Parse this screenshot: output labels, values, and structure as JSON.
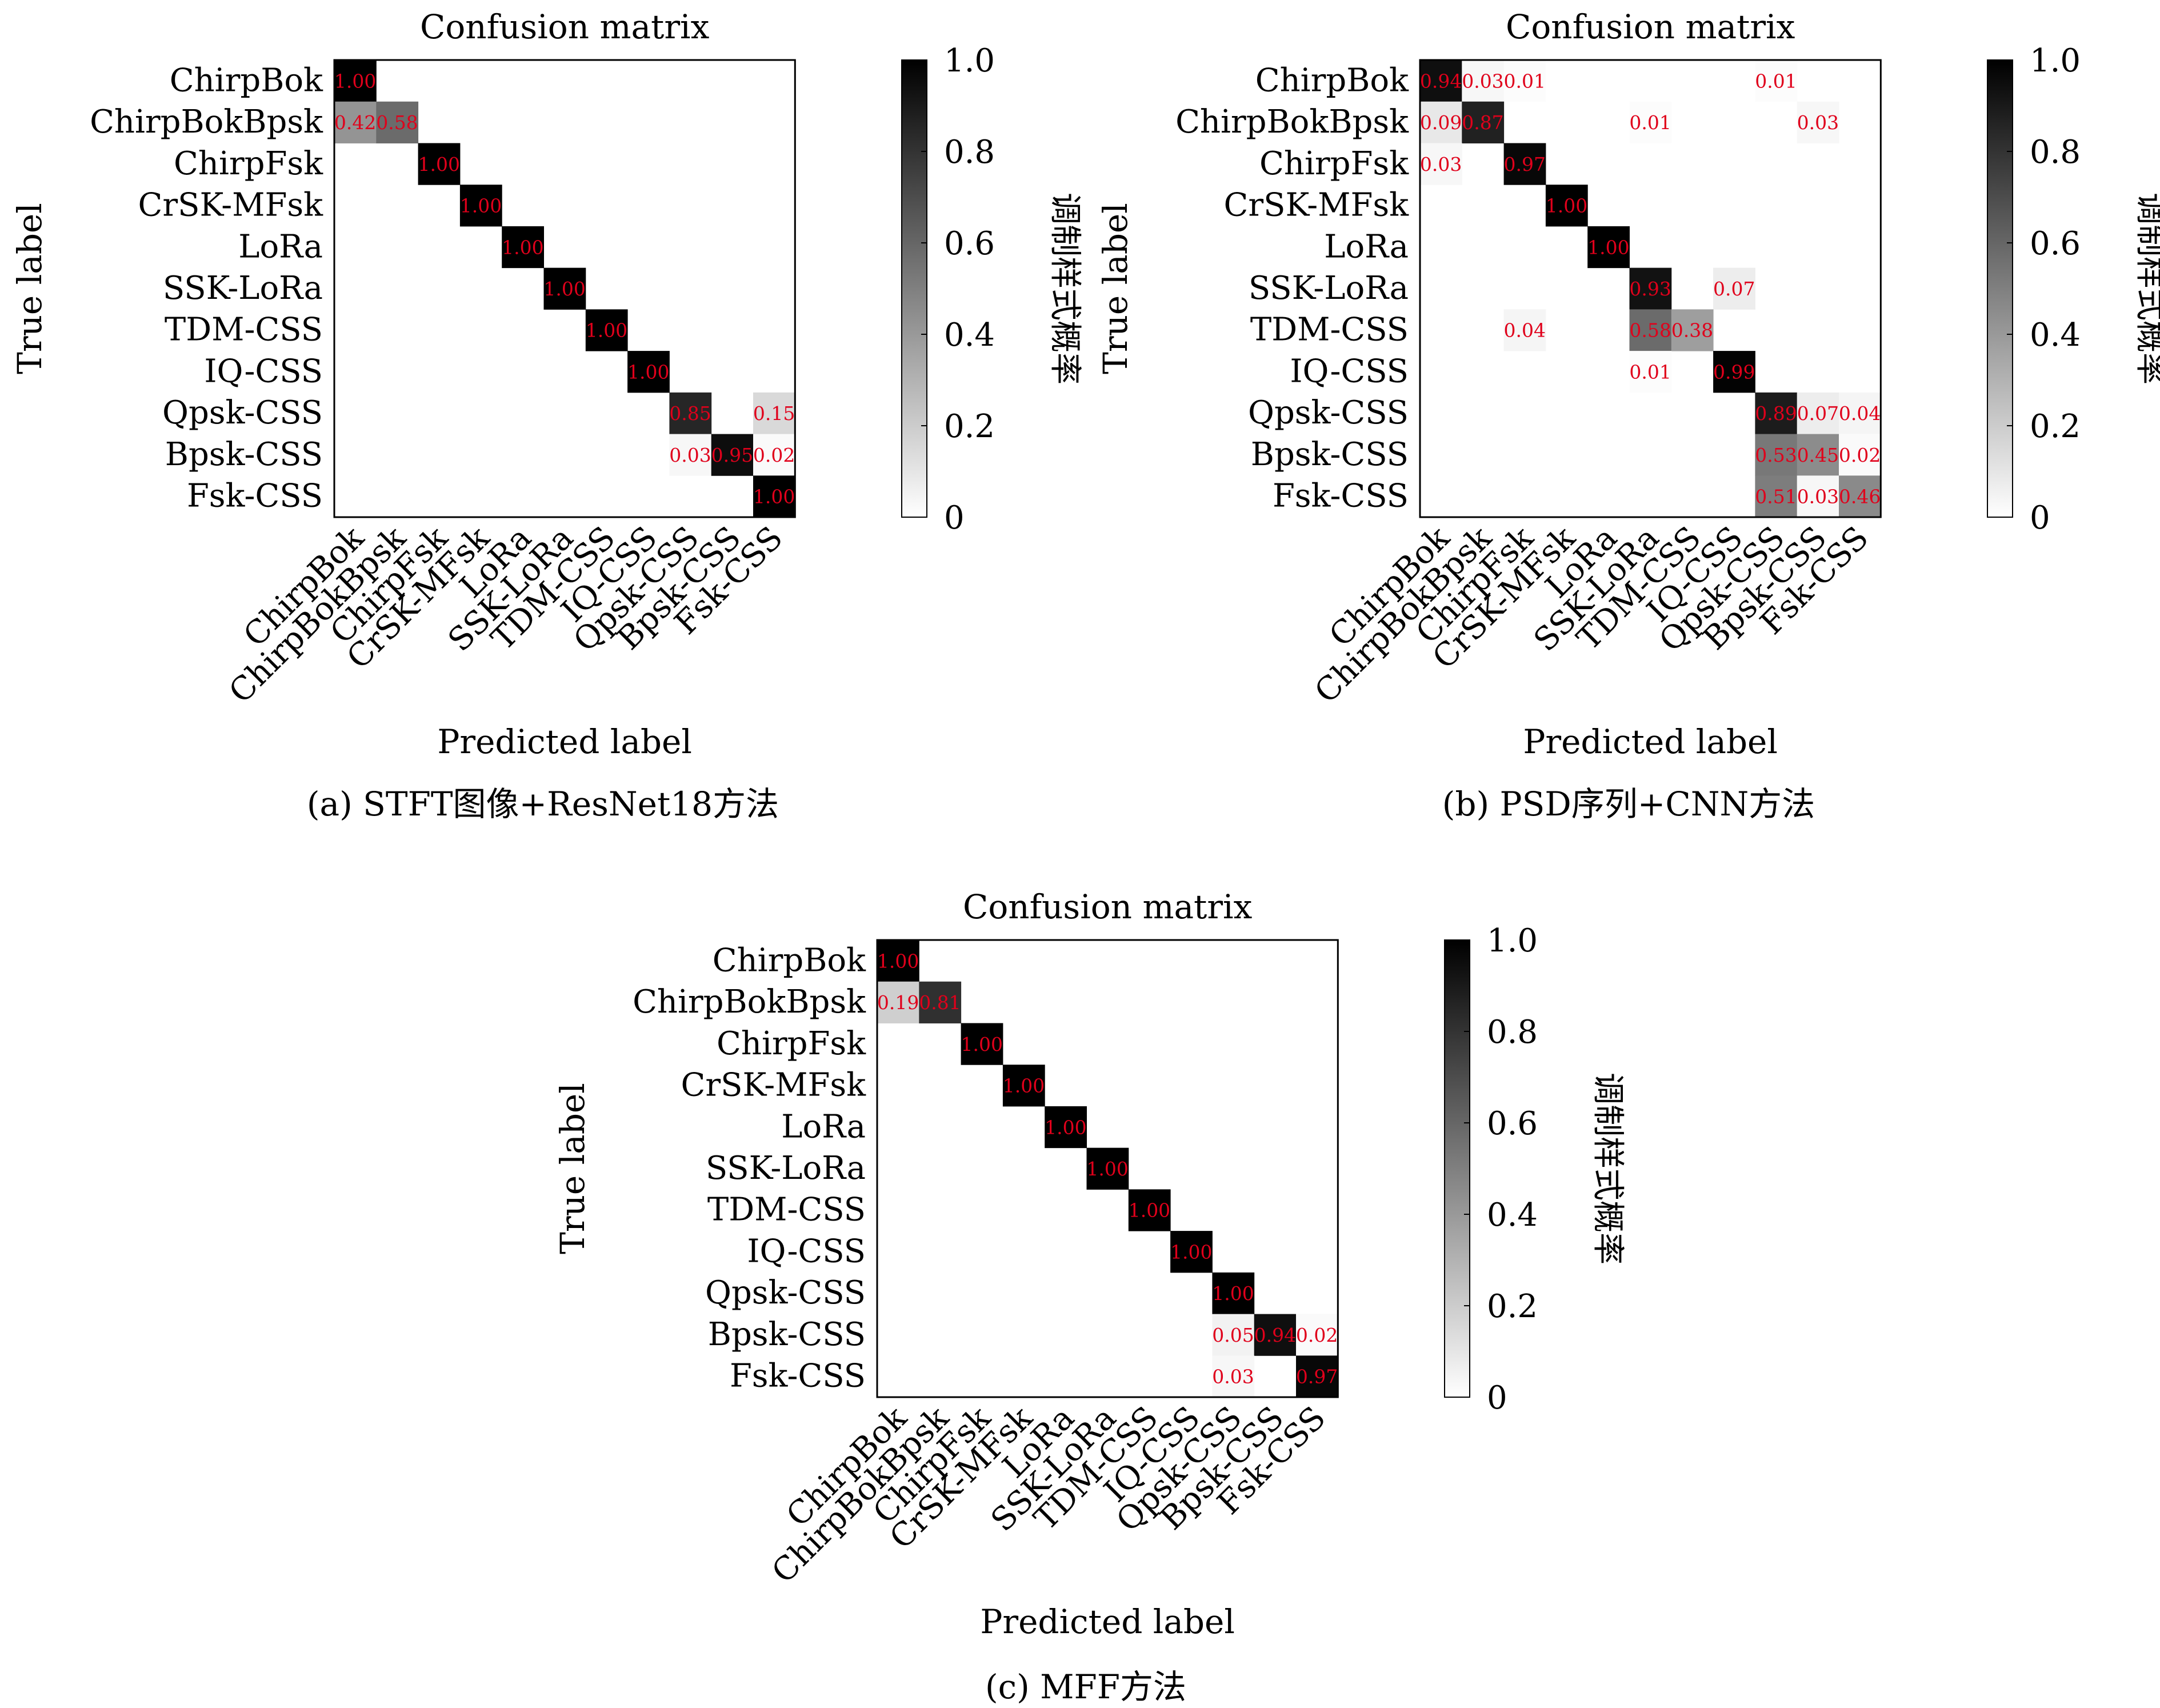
{
  "chart_data": [
    {
      "type": "heatmap",
      "title": "Confusion matrix",
      "xlabel": "Predicted label",
      "ylabel": "True label",
      "colorbar_label": "调制样式概率",
      "colorbar_ticks": [
        "0",
        "0.2",
        "0.4",
        "0.6",
        "0.8",
        "1.0"
      ],
      "colorbar_range": [
        0,
        1
      ],
      "caption": "(a) STFT图像+ResNet18方法",
      "categories": [
        "ChirpBok",
        "ChirpBokBpsk",
        "ChirpFsk",
        "CrSK-MFsk",
        "LoRa",
        "SSK-LoRa",
        "TDM-CSS",
        "IQ-CSS",
        "Qpsk-CSS",
        "Bpsk-CSS",
        "Fsk-CSS"
      ],
      "cells": [
        {
          "row": 0,
          "col": 0,
          "value": 1.0,
          "label": "1.00"
        },
        {
          "row": 1,
          "col": 0,
          "value": 0.42,
          "label": "0.42"
        },
        {
          "row": 1,
          "col": 1,
          "value": 0.58,
          "label": "0.58"
        },
        {
          "row": 2,
          "col": 2,
          "value": 1.0,
          "label": "1.00"
        },
        {
          "row": 3,
          "col": 3,
          "value": 1.0,
          "label": "1.00"
        },
        {
          "row": 4,
          "col": 4,
          "value": 1.0,
          "label": "1.00"
        },
        {
          "row": 5,
          "col": 5,
          "value": 1.0,
          "label": "1.00"
        },
        {
          "row": 6,
          "col": 6,
          "value": 1.0,
          "label": "1.00"
        },
        {
          "row": 7,
          "col": 7,
          "value": 1.0,
          "label": "1.00"
        },
        {
          "row": 8,
          "col": 8,
          "value": 0.85,
          "label": "0.85"
        },
        {
          "row": 8,
          "col": 10,
          "value": 0.15,
          "label": "0.15"
        },
        {
          "row": 9,
          "col": 8,
          "value": 0.03,
          "label": "0.03"
        },
        {
          "row": 9,
          "col": 9,
          "value": 0.95,
          "label": "0.95"
        },
        {
          "row": 9,
          "col": 10,
          "value": 0.02,
          "label": "0.02"
        },
        {
          "row": 10,
          "col": 10,
          "value": 1.0,
          "label": "1.00"
        }
      ]
    },
    {
      "type": "heatmap",
      "title": "Confusion matrix",
      "xlabel": "Predicted label",
      "ylabel": "True label",
      "colorbar_label": "调制样式概率",
      "colorbar_ticks": [
        "0",
        "0.2",
        "0.4",
        "0.6",
        "0.8",
        "1.0"
      ],
      "colorbar_range": [
        0,
        1
      ],
      "caption": "(b) PSD序列+CNN方法",
      "categories": [
        "ChirpBok",
        "ChirpBokBpsk",
        "ChirpFsk",
        "CrSK-MFsk",
        "LoRa",
        "SSK-LoRa",
        "TDM-CSS",
        "IQ-CSS",
        "Qpsk-CSS",
        "Bpsk-CSS",
        "Fsk-CSS"
      ],
      "cells": [
        {
          "row": 0,
          "col": 0,
          "value": 0.94,
          "label": "0.94"
        },
        {
          "row": 0,
          "col": 1,
          "value": 0.03,
          "label": "0.03"
        },
        {
          "row": 0,
          "col": 2,
          "value": 0.01,
          "label": "0.01"
        },
        {
          "row": 0,
          "col": 8,
          "value": 0.01,
          "label": "0.01"
        },
        {
          "row": 1,
          "col": 0,
          "value": 0.09,
          "label": "0.09"
        },
        {
          "row": 1,
          "col": 1,
          "value": 0.87,
          "label": "0.87"
        },
        {
          "row": 1,
          "col": 5,
          "value": 0.01,
          "label": "0.01"
        },
        {
          "row": 1,
          "col": 9,
          "value": 0.03,
          "label": "0.03"
        },
        {
          "row": 2,
          "col": 0,
          "value": 0.03,
          "label": "0.03"
        },
        {
          "row": 2,
          "col": 2,
          "value": 0.97,
          "label": "0.97"
        },
        {
          "row": 3,
          "col": 3,
          "value": 1.0,
          "label": "1.00"
        },
        {
          "row": 4,
          "col": 4,
          "value": 1.0,
          "label": "1.00"
        },
        {
          "row": 5,
          "col": 5,
          "value": 0.93,
          "label": "0.93"
        },
        {
          "row": 5,
          "col": 7,
          "value": 0.07,
          "label": "0.07"
        },
        {
          "row": 6,
          "col": 2,
          "value": 0.04,
          "label": "0.04"
        },
        {
          "row": 6,
          "col": 5,
          "value": 0.58,
          "label": "0.58"
        },
        {
          "row": 6,
          "col": 6,
          "value": 0.38,
          "label": "0.38"
        },
        {
          "row": 7,
          "col": 5,
          "value": 0.01,
          "label": "0.01"
        },
        {
          "row": 7,
          "col": 7,
          "value": 0.99,
          "label": "0.99"
        },
        {
          "row": 8,
          "col": 8,
          "value": 0.89,
          "label": "0.89"
        },
        {
          "row": 8,
          "col": 9,
          "value": 0.07,
          "label": "0.07"
        },
        {
          "row": 8,
          "col": 10,
          "value": 0.04,
          "label": "0.04"
        },
        {
          "row": 9,
          "col": 8,
          "value": 0.53,
          "label": "0.53"
        },
        {
          "row": 9,
          "col": 9,
          "value": 0.45,
          "label": "0.45"
        },
        {
          "row": 9,
          "col": 10,
          "value": 0.02,
          "label": "0.02"
        },
        {
          "row": 10,
          "col": 8,
          "value": 0.51,
          "label": "0.51"
        },
        {
          "row": 10,
          "col": 9,
          "value": 0.03,
          "label": "0.03"
        },
        {
          "row": 10,
          "col": 10,
          "value": 0.46,
          "label": "0.46"
        }
      ]
    },
    {
      "type": "heatmap",
      "title": "Confusion matrix",
      "xlabel": "Predicted label",
      "ylabel": "True label",
      "colorbar_label": "调制样式概率",
      "colorbar_ticks": [
        "0",
        "0.2",
        "0.4",
        "0.6",
        "0.8",
        "1.0"
      ],
      "colorbar_range": [
        0,
        1
      ],
      "caption": "(c) MFF方法",
      "categories": [
        "ChirpBok",
        "ChirpBokBpsk",
        "ChirpFsk",
        "CrSK-MFsk",
        "LoRa",
        "SSK-LoRa",
        "TDM-CSS",
        "IQ-CSS",
        "Qpsk-CSS",
        "Bpsk-CSS",
        "Fsk-CSS"
      ],
      "cells": [
        {
          "row": 0,
          "col": 0,
          "value": 1.0,
          "label": "1.00"
        },
        {
          "row": 1,
          "col": 0,
          "value": 0.19,
          "label": "0.19"
        },
        {
          "row": 1,
          "col": 1,
          "value": 0.81,
          "label": "0.81"
        },
        {
          "row": 2,
          "col": 2,
          "value": 1.0,
          "label": "1.00"
        },
        {
          "row": 3,
          "col": 3,
          "value": 1.0,
          "label": "1.00"
        },
        {
          "row": 4,
          "col": 4,
          "value": 1.0,
          "label": "1.00"
        },
        {
          "row": 5,
          "col": 5,
          "value": 1.0,
          "label": "1.00"
        },
        {
          "row": 6,
          "col": 6,
          "value": 1.0,
          "label": "1.00"
        },
        {
          "row": 7,
          "col": 7,
          "value": 1.0,
          "label": "1.00"
        },
        {
          "row": 8,
          "col": 8,
          "value": 1.0,
          "label": "1.00"
        },
        {
          "row": 9,
          "col": 8,
          "value": 0.05,
          "label": "0.05"
        },
        {
          "row": 9,
          "col": 9,
          "value": 0.94,
          "label": "0.94"
        },
        {
          "row": 9,
          "col": 10,
          "value": 0.02,
          "label": "0.02"
        },
        {
          "row": 10,
          "col": 8,
          "value": 0.03,
          "label": "0.03"
        },
        {
          "row": 10,
          "col": 10,
          "value": 0.97,
          "label": "0.97"
        }
      ]
    }
  ],
  "style": {
    "cell_label_color": "#e0001b",
    "high_color": "#000000",
    "low_color": "#ffffff"
  }
}
